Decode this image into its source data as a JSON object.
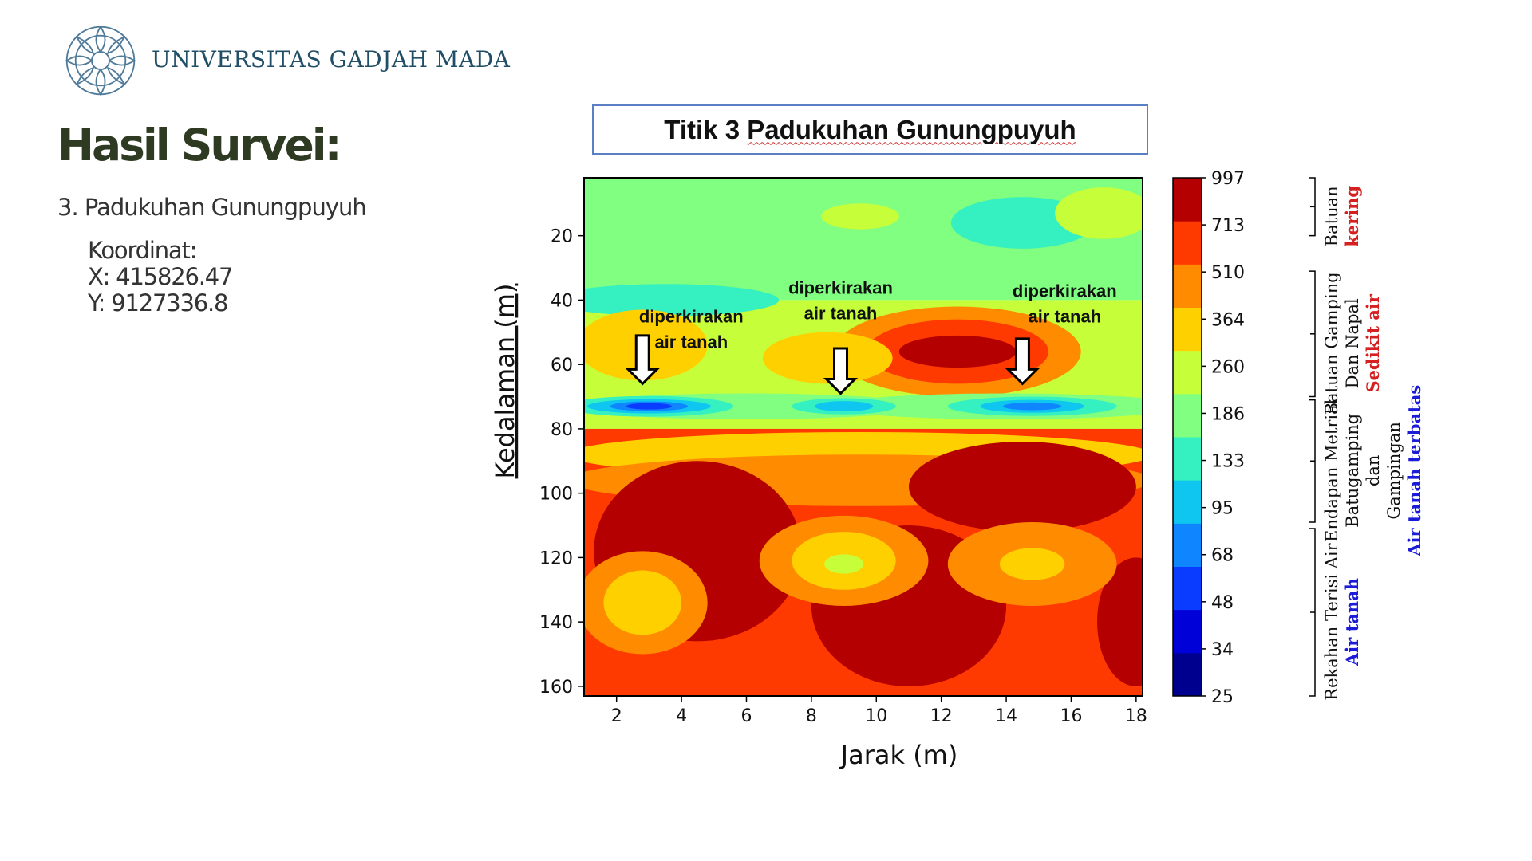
{
  "header": {
    "university_name": "UNIVERSITAS GADJAH MADA",
    "logo_icon": "ugm-seal-icon"
  },
  "slide": {
    "title": "Hasil Survei:",
    "subtitle": "3. Padukuhan Gunungpuyuh",
    "coordinates": {
      "label": "Koordinat:",
      "x": "X: 415826.47",
      "y": "Y: 9127336.8"
    }
  },
  "chart_data": {
    "type": "heatmap",
    "title": "Titik 3 Padukuhan Gunungpuyuh",
    "title_parts": {
      "prefix": "Titik 3 ",
      "underlined": "Padukuhan Gunungpuyuh"
    },
    "xlabel": "Jarak (m)",
    "ylabel": "Kedalaman (m)",
    "xlim": [
      1,
      18.2
    ],
    "ylim": [
      163,
      2
    ],
    "x_ticks": [
      2,
      4,
      6,
      8,
      10,
      12,
      14,
      16,
      18
    ],
    "y_ticks": [
      20,
      40,
      60,
      80,
      100,
      120,
      140,
      160
    ],
    "colorbar": {
      "levels": [
        25,
        34,
        48,
        68,
        95,
        133,
        186,
        260,
        364,
        510,
        713,
        997
      ],
      "colors": [
        "#00008f",
        "#0000d8",
        "#0a3cff",
        "#0f86ff",
        "#0ec6f0",
        "#35f0c0",
        "#80ff80",
        "#c6ff3a",
        "#ffd000",
        "#ff8c00",
        "#ff3a00",
        "#b40000"
      ]
    },
    "bands": [
      {
        "depth_range": [
          0,
          40
        ],
        "level_index": 6
      },
      {
        "depth_range": [
          40,
          80
        ],
        "level_index": 7
      },
      {
        "depth_range": [
          80,
          163
        ],
        "level_index": 10
      }
    ],
    "patches": [
      {
        "x": 9.5,
        "y": 14,
        "rx": 1.2,
        "ry": 4,
        "level_index": 7
      },
      {
        "x": 14.5,
        "y": 16,
        "rx": 2.2,
        "ry": 8,
        "level_index": 5
      },
      {
        "x": 17,
        "y": 13,
        "rx": 1.5,
        "ry": 8,
        "level_index": 7
      },
      {
        "x": 3.5,
        "y": 40,
        "rx": 3.5,
        "ry": 5,
        "level_index": 5
      },
      {
        "x": 2.8,
        "y": 54,
        "rx": 2.0,
        "ry": 11,
        "level_index": 8
      },
      {
        "x": 12.5,
        "y": 56,
        "rx": 3.8,
        "ry": 14,
        "level_index": 9
      },
      {
        "x": 12.5,
        "y": 56,
        "rx": 2.8,
        "ry": 10,
        "level_index": 10
      },
      {
        "x": 12.5,
        "y": 56,
        "rx": 1.8,
        "ry": 5,
        "level_index": 11
      },
      {
        "x": 8.5,
        "y": 58,
        "rx": 2.0,
        "ry": 8,
        "level_index": 8
      },
      {
        "x": 6,
        "y": 73,
        "rx": 5.5,
        "ry": 4,
        "level_index": 6
      },
      {
        "x": 14,
        "y": 73,
        "rx": 5.5,
        "ry": 4,
        "level_index": 6
      },
      {
        "x": 3,
        "y": 73,
        "rx": 2.6,
        "ry": 3.2,
        "level_index": 5
      },
      {
        "x": 3,
        "y": 73,
        "rx": 1.9,
        "ry": 2.2,
        "level_index": 4
      },
      {
        "x": 3,
        "y": 73,
        "rx": 1.2,
        "ry": 1.5,
        "level_index": 3
      },
      {
        "x": 3,
        "y": 73,
        "rx": 0.7,
        "ry": 1.0,
        "level_index": 2
      },
      {
        "x": 9,
        "y": 73,
        "rx": 1.6,
        "ry": 2.5,
        "level_index": 5
      },
      {
        "x": 9,
        "y": 73,
        "rx": 0.9,
        "ry": 1.6,
        "level_index": 4
      },
      {
        "x": 14.8,
        "y": 73,
        "rx": 2.6,
        "ry": 3,
        "level_index": 5
      },
      {
        "x": 14.8,
        "y": 73,
        "rx": 1.6,
        "ry": 2.0,
        "level_index": 4
      },
      {
        "x": 14.8,
        "y": 73,
        "rx": 0.9,
        "ry": 1.2,
        "level_index": 3
      },
      {
        "x": 9.5,
        "y": 88,
        "rx": 9,
        "ry": 7,
        "level_index": 8
      },
      {
        "x": 9.5,
        "y": 96,
        "rx": 9,
        "ry": 8,
        "level_index": 9
      },
      {
        "x": 4.5,
        "y": 118,
        "rx": 3.2,
        "ry": 28,
        "level_index": 11
      },
      {
        "x": 11,
        "y": 135,
        "rx": 3,
        "ry": 25,
        "level_index": 11
      },
      {
        "x": 14.5,
        "y": 98,
        "rx": 3.5,
        "ry": 14,
        "level_index": 11
      },
      {
        "x": 18,
        "y": 140,
        "rx": 1.2,
        "ry": 20,
        "level_index": 11
      },
      {
        "x": 2.8,
        "y": 134,
        "rx": 2.0,
        "ry": 16,
        "level_index": 9
      },
      {
        "x": 2.8,
        "y": 134,
        "rx": 1.2,
        "ry": 10,
        "level_index": 8
      },
      {
        "x": 9,
        "y": 121,
        "rx": 2.6,
        "ry": 14,
        "level_index": 9
      },
      {
        "x": 9,
        "y": 121,
        "rx": 1.6,
        "ry": 9,
        "level_index": 8
      },
      {
        "x": 9,
        "y": 122,
        "rx": 0.6,
        "ry": 3,
        "level_index": 7
      },
      {
        "x": 14.8,
        "y": 122,
        "rx": 2.6,
        "ry": 13,
        "level_index": 9
      },
      {
        "x": 14.8,
        "y": 122,
        "rx": 1.0,
        "ry": 5,
        "level_index": 8
      },
      {
        "x": 13,
        "y": 96,
        "rx": 1.2,
        "ry": 8,
        "level_index": 11
      },
      {
        "x": 16,
        "y": 96,
        "rx": 1.2,
        "ry": 8,
        "level_index": 11
      }
    ],
    "annotations": [
      {
        "lines": [
          "diperkirakan",
          "air tanah"
        ],
        "x": 4.3,
        "y": 47,
        "arrow_x": 2.8,
        "arrow_y0": 51,
        "arrow_y1": 66
      },
      {
        "lines": [
          "diperkirakan",
          "air tanah"
        ],
        "x": 8.9,
        "y": 38,
        "arrow_x": 8.9,
        "arrow_y0": 55,
        "arrow_y1": 69
      },
      {
        "lines": [
          "diperkirakan",
          "air tanah"
        ],
        "x": 15.8,
        "y": 39,
        "arrow_x": 14.5,
        "arrow_y0": 52,
        "arrow_y1": 66
      }
    ],
    "side_legend": [
      {
        "depth_range": [
          2,
          20
        ],
        "lines": [
          "Batuan"
        ],
        "highlight": "kering",
        "highlight_color": "#d42020"
      },
      {
        "depth_range": [
          31,
          70
        ],
        "lines": [
          "Batuan Gamping",
          "Dan Napal"
        ],
        "highlight": "Sedikit air",
        "highlight_color": "#d42020"
      },
      {
        "depth_range": [
          71,
          109
        ],
        "lines": [
          "Endapan Metrial",
          "Batugamping",
          "dan",
          "Gampingan"
        ],
        "highlight": "Air tanah terbatas",
        "highlight_color": "#1c1cd8"
      },
      {
        "depth_range": [
          111,
          163
        ],
        "lines": [
          "Rekahan Terisi Air"
        ],
        "highlight": "Air tanah",
        "highlight_color": "#1c1cd8"
      }
    ]
  }
}
